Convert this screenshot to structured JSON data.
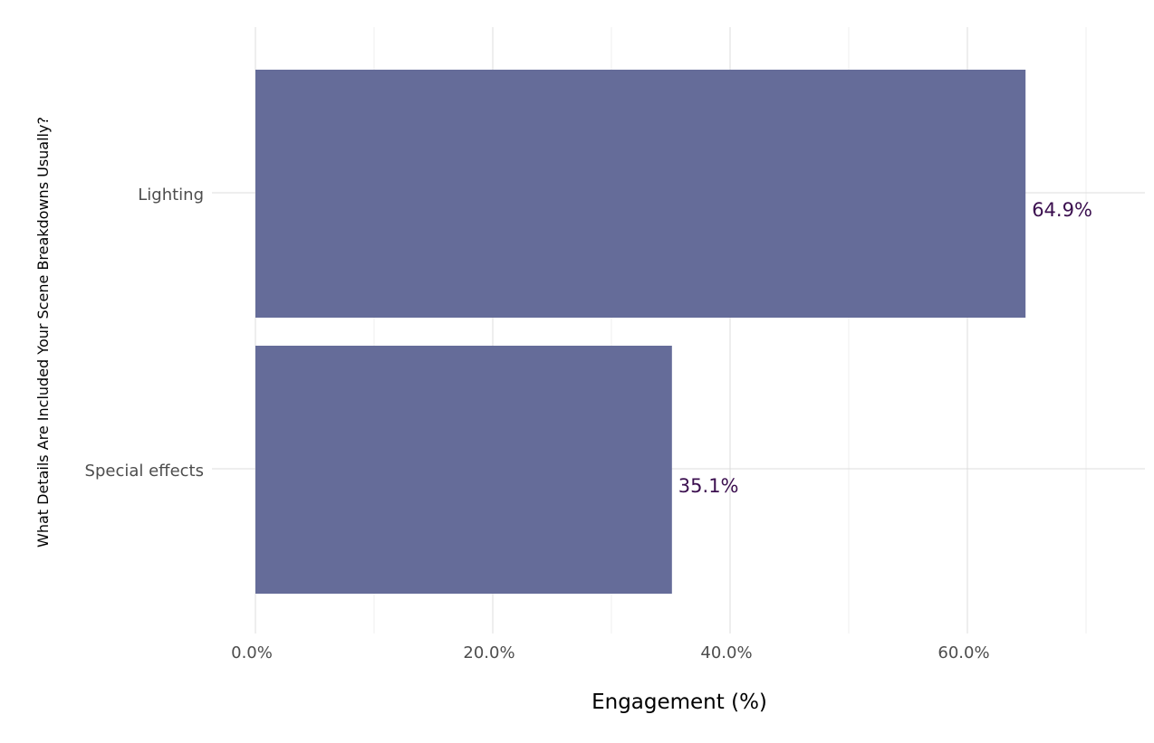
{
  "chart_data": {
    "type": "bar",
    "orientation": "horizontal",
    "categories": [
      "Lighting",
      "Special effects"
    ],
    "values": [
      64.9,
      35.1
    ],
    "data_labels": [
      "64.9%",
      "35.1%"
    ],
    "title": "",
    "xlabel": "Engagement (%)",
    "ylabel": "What Details Are Included Your Scene Breakdowns Usually?",
    "xlim": [
      0,
      75
    ],
    "x_ticks": [
      0,
      20,
      40,
      60
    ],
    "x_tick_labels": [
      "0.0%",
      "20.0%",
      "40.0%",
      "60.0%"
    ],
    "grid": true,
    "legend": "none"
  },
  "colors": {
    "bar": "#656c99",
    "data_label": "#3b0f4f",
    "grid_major": "#dcdcdc",
    "grid_minor": "#efefef"
  }
}
